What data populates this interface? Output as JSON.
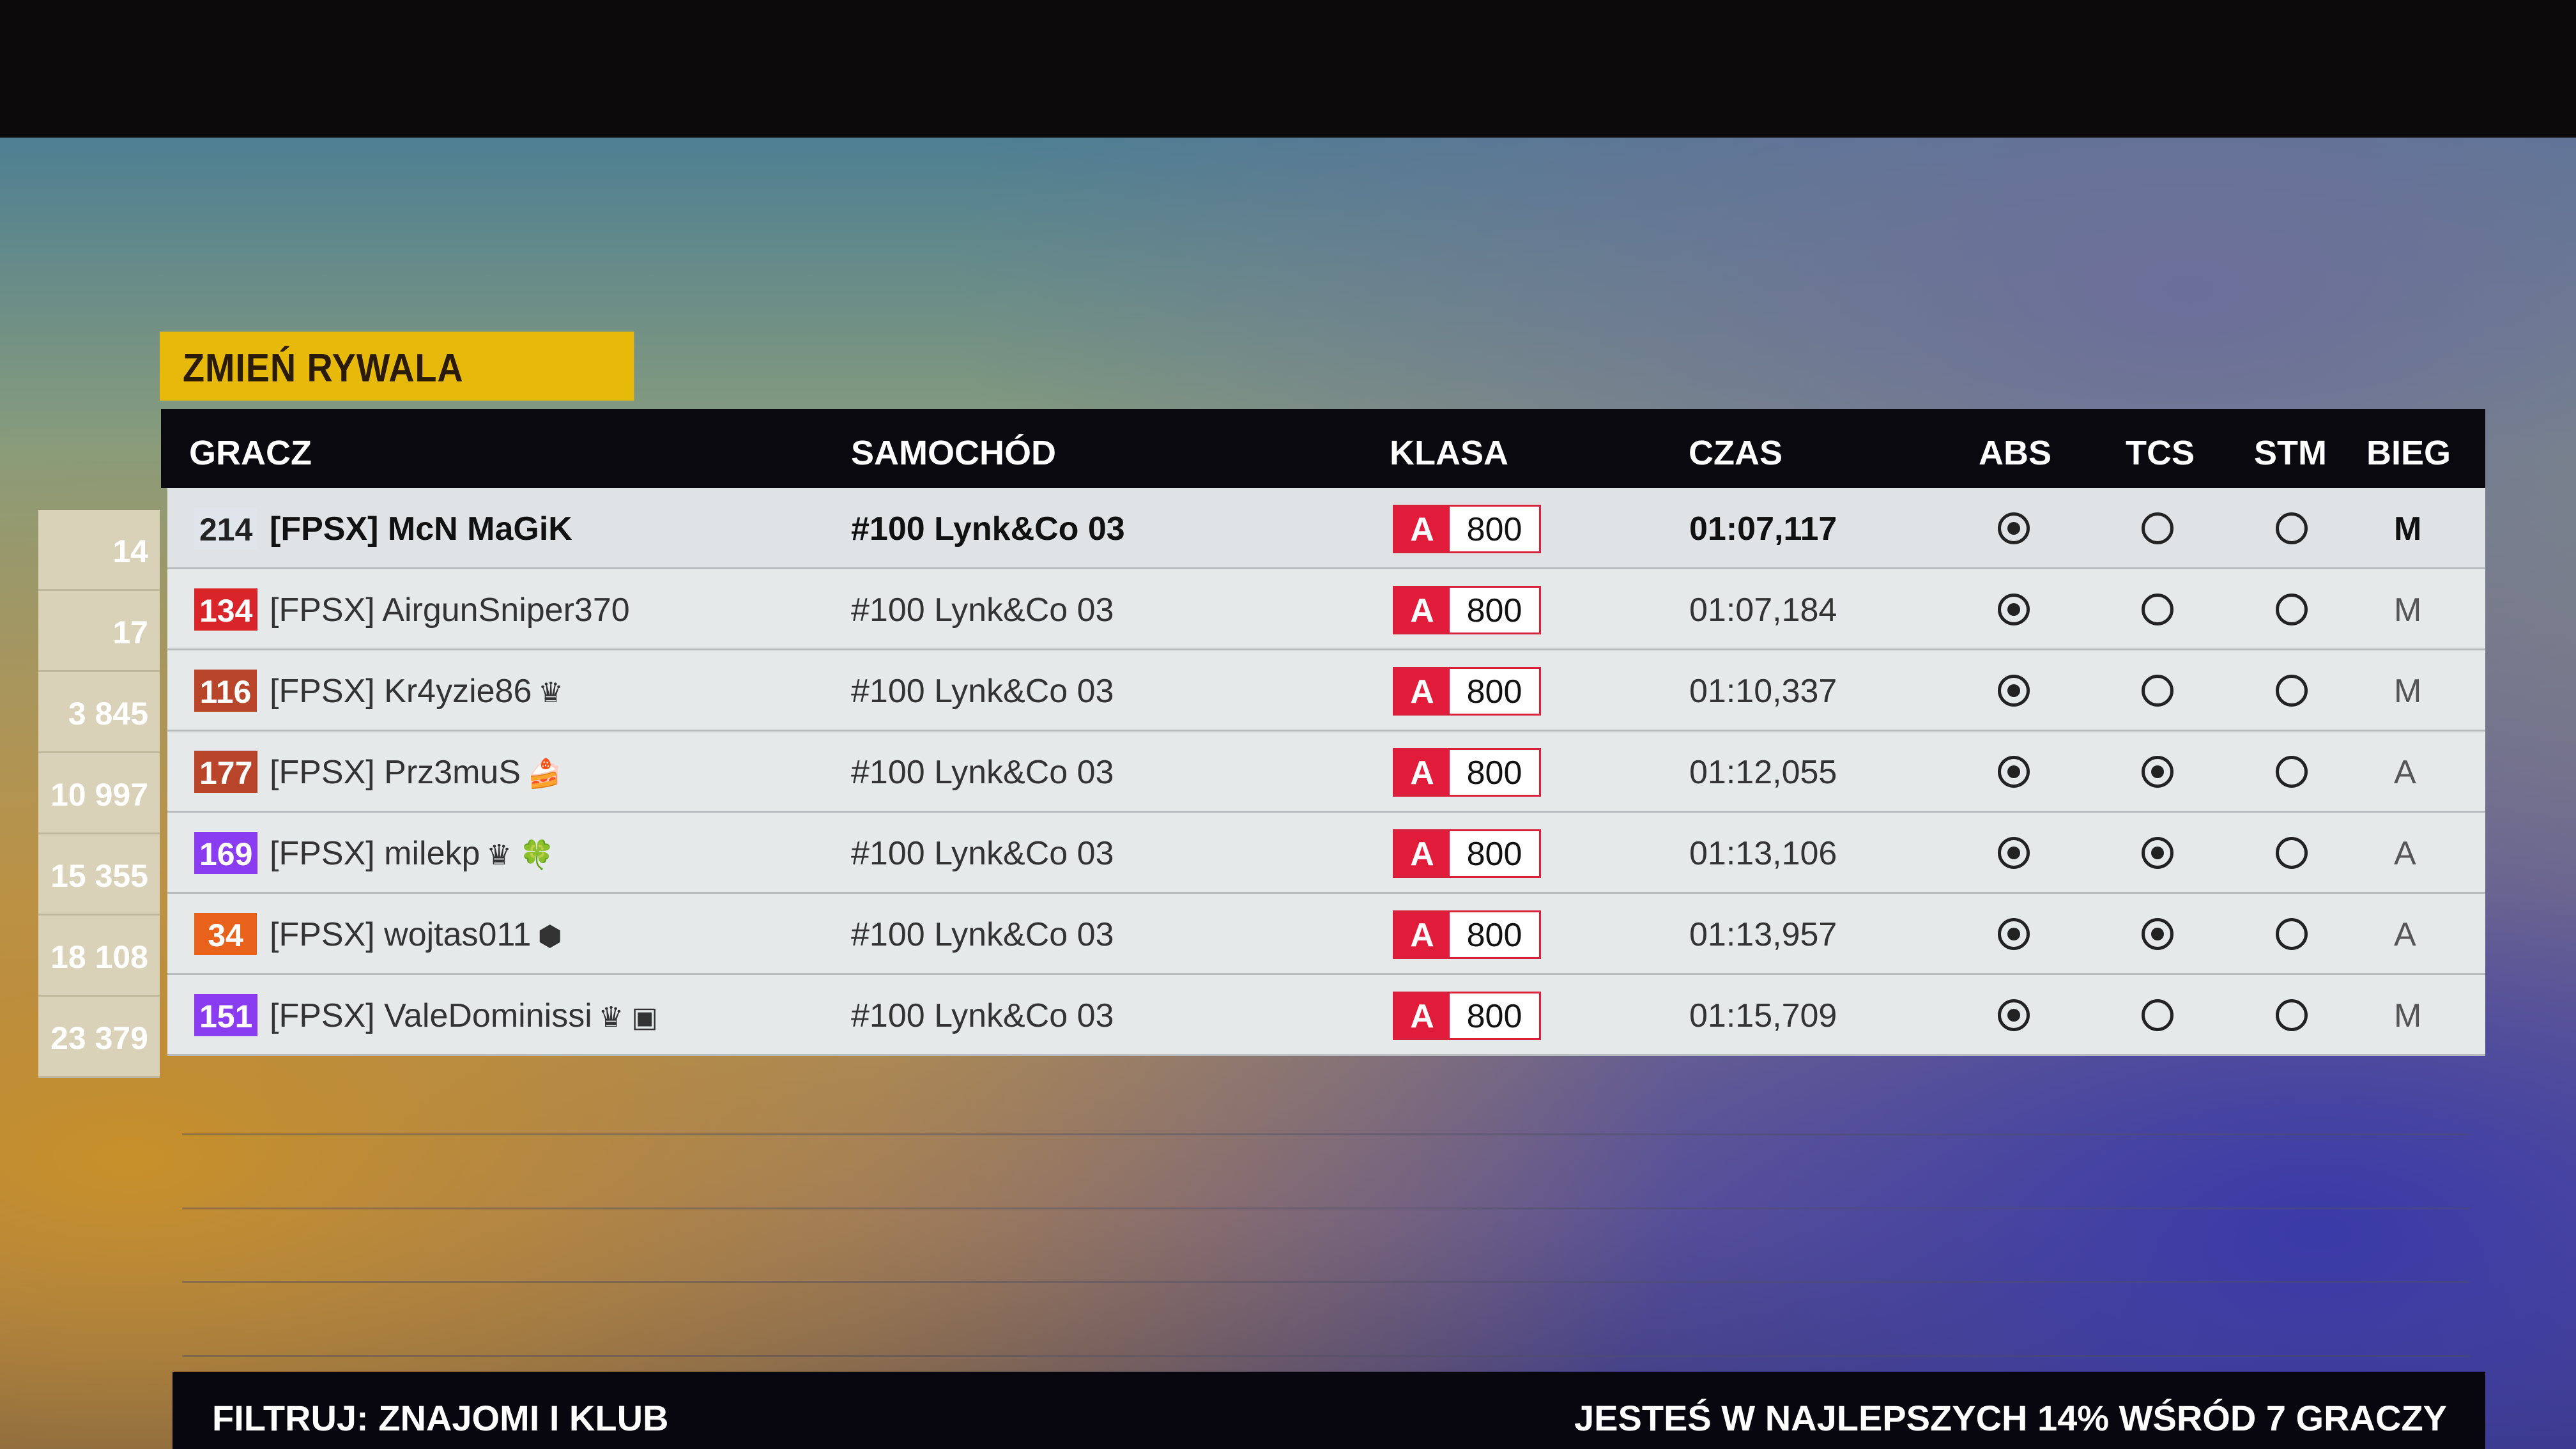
{
  "change_rival_label": "ZMIEŃ RYWALA",
  "columns": {
    "player": "GRACZ",
    "car": "SAMOCHÓD",
    "class": "KLASA",
    "time": "CZAS",
    "abs": "ABS",
    "tcs": "TCS",
    "stm": "STM",
    "gear": "BIEG"
  },
  "rows": [
    {
      "rank": "14",
      "level": "214",
      "level_color": "#dfe5ea",
      "player": "[FPSX] McN MaGiK",
      "badge": "",
      "car": "#100 Lynk&Co 03",
      "class_letter": "A",
      "class_value": "800",
      "time": "01:07,117",
      "abs": true,
      "tcs": false,
      "stm": false,
      "gear": "M"
    },
    {
      "rank": "17",
      "level": "134",
      "level_color": "#d9252a",
      "player": "[FPSX] AirgunSniper370",
      "badge": "",
      "car": "#100 Lynk&Co 03",
      "class_letter": "A",
      "class_value": "800",
      "time": "01:07,184",
      "abs": true,
      "tcs": false,
      "stm": false,
      "gear": "M"
    },
    {
      "rank": "3 845",
      "level": "116",
      "level_color": "#b8442a",
      "player": "[FPSX] Kr4yzie86",
      "badge": "♛",
      "car": "#100 Lynk&Co 03",
      "class_letter": "A",
      "class_value": "800",
      "time": "01:10,337",
      "abs": true,
      "tcs": false,
      "stm": false,
      "gear": "M"
    },
    {
      "rank": "10 997",
      "level": "177",
      "level_color": "#b8442a",
      "player": "[FPSX] Prz3muS",
      "badge": "🍰",
      "car": "#100 Lynk&Co 03",
      "class_letter": "A",
      "class_value": "800",
      "time": "01:12,055",
      "abs": true,
      "tcs": true,
      "stm": false,
      "gear": "A"
    },
    {
      "rank": "15 355",
      "level": "169",
      "level_color": "#8a3cf0",
      "player": "[FPSX] milekp",
      "badge": "♛ 🍀",
      "car": "#100 Lynk&Co 03",
      "class_letter": "A",
      "class_value": "800",
      "time": "01:13,106",
      "abs": true,
      "tcs": true,
      "stm": false,
      "gear": "A"
    },
    {
      "rank": "18 108",
      "level": "34",
      "level_color": "#e8621c",
      "player": "[FPSX] wojtas011",
      "badge": "⬢",
      "car": "#100 Lynk&Co 03",
      "class_letter": "A",
      "class_value": "800",
      "time": "01:13,957",
      "abs": true,
      "tcs": true,
      "stm": false,
      "gear": "A"
    },
    {
      "rank": "23 379",
      "level": "151",
      "level_color": "#8a3cf0",
      "player": "[FPSX] ValeDominissi",
      "badge": "♛ ▣",
      "car": "#100 Lynk&Co 03",
      "class_letter": "A",
      "class_value": "800",
      "time": "01:15,709",
      "abs": true,
      "tcs": false,
      "stm": false,
      "gear": "M"
    }
  ],
  "footer": {
    "filter": "FILTRUJ: ZNAJOMI I KLUB",
    "summary": "JESTEŚ W NAJLEPSZYCH 14% WŚRÓD 7 GRACZY"
  }
}
